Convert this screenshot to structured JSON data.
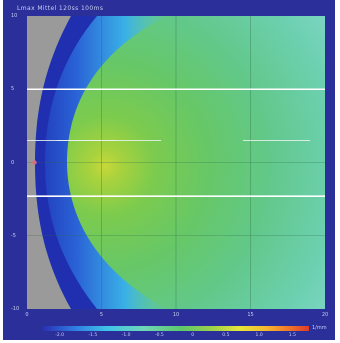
{
  "chart_data": {
    "type": "heatmap",
    "title": "Lmax  Mittel 120ss 100ms",
    "x_axis": {
      "ticks": [
        0,
        5,
        10,
        15,
        20
      ],
      "range": [
        0,
        20
      ]
    },
    "y_axis": {
      "ticks": [
        10,
        5,
        0,
        -5,
        -10
      ],
      "range": [
        -10,
        10
      ]
    },
    "colorbar": {
      "tick_labels": [
        "-2.0",
        "-1.5",
        "-1.0",
        "-0.5",
        "0",
        "0.5",
        "1.0",
        "1.5"
      ],
      "unit": "1/mm",
      "colors": [
        "#2a2fb5",
        "#2f7de3",
        "#3fc4e8",
        "#6fd6b8",
        "#5dc86a",
        "#9fd24a",
        "#e6e638",
        "#f5b830",
        "#f07a2a",
        "#e03a2a"
      ]
    },
    "grid": true,
    "colors": {
      "frame": "#2a2f9a",
      "masked_region": "#9a9a9a",
      "guide_lines": "#ffffff"
    }
  }
}
